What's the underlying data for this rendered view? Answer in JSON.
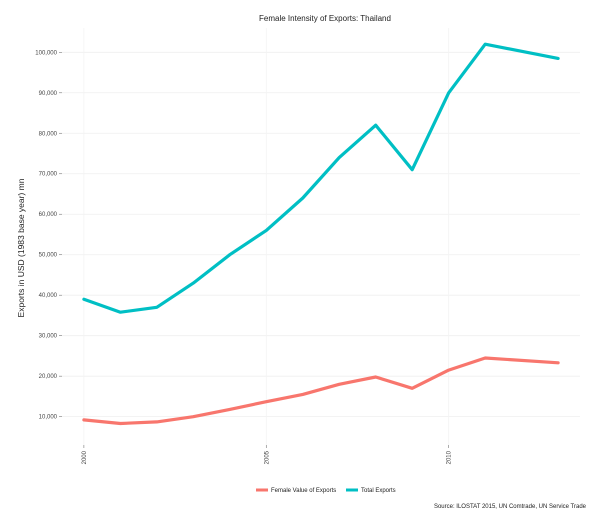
{
  "chart_data": {
    "type": "line",
    "title": "Female Intensity of Exports: Thailand",
    "xlabel": "",
    "ylabel": "Exports in USD (1983 base year) mn",
    "source": "Source: ILOSTAT 2015, UN Comtrade, UN Service Trade",
    "x": [
      2000,
      2001,
      2002,
      2003,
      2004,
      2005,
      2006,
      2007,
      2008,
      2009,
      2010,
      2011,
      2013
    ],
    "xlim": [
      1999.4,
      2013.6
    ],
    "ylim": [
      3000,
      106000
    ],
    "x_ticks": [
      2000,
      2005,
      2010
    ],
    "x_tick_labels": [
      "2000",
      "2005",
      "2010"
    ],
    "y_ticks": [
      10000,
      20000,
      30000,
      40000,
      50000,
      60000,
      70000,
      80000,
      90000,
      100000
    ],
    "y_tick_labels": [
      "10,000",
      "20,000",
      "30,000",
      "40,000",
      "50,000",
      "60,000",
      "70,000",
      "80,000",
      "90,000",
      "100,000"
    ],
    "grid": true,
    "legend_position": "bottom",
    "series": [
      {
        "name": "Female Value of Exports",
        "color": "#f8766d",
        "values": [
          9200,
          8300,
          8700,
          10000,
          11800,
          13700,
          15500,
          18000,
          19800,
          17000,
          21500,
          24500,
          23300
        ]
      },
      {
        "name": "Total Exports",
        "color": "#00bfc4",
        "values": [
          39000,
          35800,
          37000,
          43000,
          50000,
          56000,
          64000,
          74000,
          82000,
          71000,
          90000,
          102000,
          98500
        ]
      }
    ]
  }
}
